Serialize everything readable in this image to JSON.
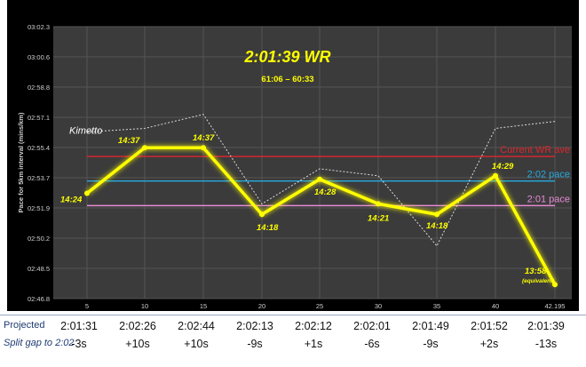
{
  "chart_data": {
    "type": "line",
    "title": "2:01:39 WR",
    "subtitle": "61:06 – 60:33",
    "ylabel": "Pace for 5km interval (mins/km)",
    "x": [
      5,
      10,
      15,
      20,
      25,
      30,
      35,
      40,
      42.195
    ],
    "x_tick_labels": [
      "5",
      "10",
      "15",
      "20",
      "25",
      "30",
      "35",
      "40",
      "42.195"
    ],
    "y_tick_labels": [
      "03:02.3",
      "03:00.6",
      "02:58.8",
      "02:57.1",
      "02:55.4",
      "02:53.7",
      "02:51.9",
      "02:50.2",
      "02:48.5",
      "02:46.8"
    ],
    "ylim_seconds": [
      166.8,
      182.3
    ],
    "series": [
      {
        "name": "Kimetto",
        "style": "dotted",
        "color": "#d9d9d9",
        "values_seconds": [
          176.3,
          176.5,
          177.3,
          172.2,
          174.2,
          173.8,
          169.8,
          176.5,
          176.9
        ]
      },
      {
        "name": "2:01:39 WR",
        "style": "solid",
        "color": "#ffff00",
        "values_seconds": [
          172.8,
          175.4,
          175.4,
          171.6,
          173.6,
          172.2,
          171.6,
          173.8,
          167.6
        ],
        "point_labels": [
          "14:24",
          "14:37",
          "14:37",
          "14:18",
          "14:28",
          "14:21",
          "14:18",
          "14:29",
          "13:58"
        ],
        "point_sublabels": [
          "",
          "",
          "",
          "",
          "",
          "",
          "",
          "",
          "(equivalent)"
        ]
      }
    ],
    "reference_lines": [
      {
        "label": "Current WR ave",
        "value_seconds": 174.9,
        "color": "#e0242c"
      },
      {
        "label": "2:02 pace",
        "value_seconds": 173.5,
        "color": "#27aae1"
      },
      {
        "label": "2:01 pace",
        "value_seconds": 172.1,
        "color": "#e88ad6"
      }
    ],
    "grid": true,
    "annotation_color": "#ffff00"
  },
  "table": {
    "rows": [
      {
        "label": "Projected",
        "italic": false,
        "cells": [
          "2:01:31",
          "2:02:26",
          "2:02:44",
          "2:02:13",
          "2:02:12",
          "2:02:01",
          "2:01:49",
          "2:01:52",
          "2:01:39"
        ]
      },
      {
        "label": "Split gap to 2:02",
        "italic": true,
        "cells": [
          "-3s",
          "+10s",
          "+10s",
          "-9s",
          "+1s",
          "-6s",
          "-9s",
          "+2s",
          "-13s"
        ]
      }
    ]
  }
}
